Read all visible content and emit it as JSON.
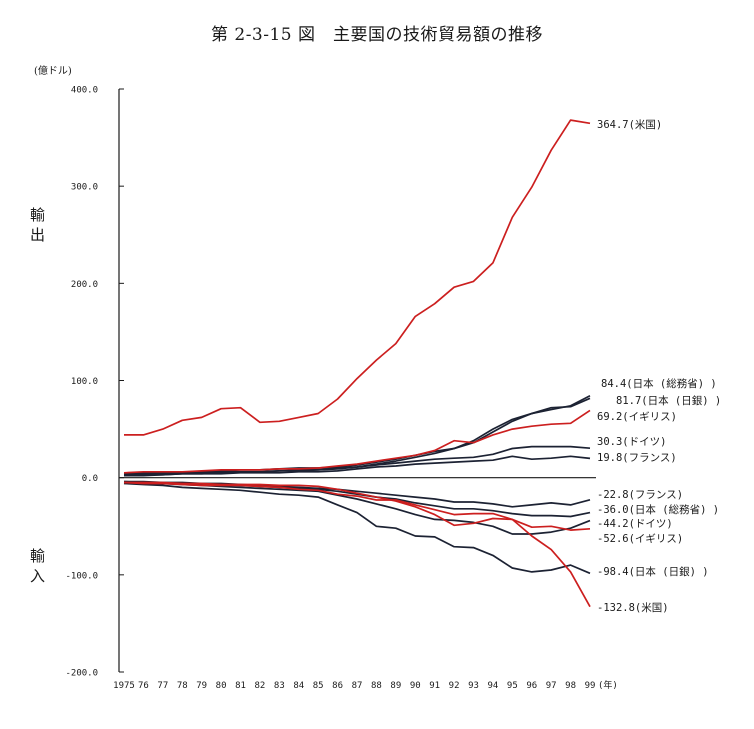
{
  "chart_data": {
    "type": "line",
    "title": "第 2-3-15 図　主要国の技術貿易額の推移",
    "unit_label": "(億ドル)",
    "export_label": "輸\n出",
    "import_label": "輸\n入",
    "year_suffix": "(年)",
    "x": [
      "1975",
      "76",
      "77",
      "78",
      "79",
      "80",
      "81",
      "82",
      "83",
      "84",
      "85",
      "86",
      "87",
      "88",
      "89",
      "90",
      "91",
      "92",
      "93",
      "94",
      "95",
      "96",
      "97",
      "98",
      "99"
    ],
    "ylim": [
      -200,
      400
    ],
    "yticks": [
      400,
      300,
      200,
      100,
      0,
      -100,
      -200
    ],
    "ytick_labels": [
      "400.0",
      "300.0",
      "200.0",
      "100.0",
      "0.0",
      "-100.0",
      "-200.0"
    ],
    "grid": false,
    "colors": {
      "red": "#cc1f1f",
      "dark": "#1c2233"
    },
    "series": [
      {
        "name": "364.7(米国)",
        "color": "red",
        "values": [
          44,
          44,
          50,
          59,
          62,
          71,
          72,
          57,
          58,
          62,
          66,
          81,
          102,
          121,
          138,
          166,
          179,
          196,
          202,
          221,
          268,
          299,
          337,
          368,
          364.7
        ]
      },
      {
        "name": "84.4(日本 (総務省) )",
        "color": "dark",
        "values": [
          4,
          5,
          5,
          6,
          6,
          7,
          8,
          8,
          9,
          10,
          10,
          11,
          13,
          16,
          19,
          23,
          27,
          30,
          36,
          47,
          58,
          66,
          70,
          74,
          84.4
        ]
      },
      {
        "name": "81.7(日本 (日銀) )",
        "color": "dark",
        "values": [
          2,
          2,
          3,
          4,
          4,
          5,
          6,
          6,
          7,
          7,
          8,
          9,
          11,
          14,
          17,
          21,
          25,
          30,
          38,
          50,
          60,
          66,
          72,
          73,
          81.7
        ]
      },
      {
        "name": "69.2(イギリス)",
        "color": "red",
        "values": [
          5,
          6,
          6,
          6,
          7,
          8,
          8,
          8,
          9,
          9,
          10,
          12,
          14,
          17,
          20,
          23,
          28,
          38,
          36,
          44,
          50,
          53,
          55,
          56,
          69.2
        ]
      },
      {
        "name": "30.3(ドイツ)",
        "color": "dark",
        "values": [
          3,
          4,
          4,
          5,
          5,
          6,
          6,
          6,
          7,
          8,
          8,
          10,
          11,
          13,
          15,
          17,
          19,
          20,
          21,
          24,
          30,
          32,
          32,
          32,
          30.3
        ]
      },
      {
        "name": "19.8(フランス)",
        "color": "dark",
        "values": [
          2,
          3,
          3,
          4,
          4,
          4,
          5,
          5,
          5,
          6,
          6,
          7,
          9,
          11,
          12,
          14,
          15,
          16,
          17,
          18,
          22,
          19,
          20,
          22,
          19.8
        ]
      },
      {
        "name": "-22.8(フランス)",
        "color": "dark",
        "values": [
          -4,
          -4,
          -5,
          -5,
          -6,
          -6,
          -7,
          -8,
          -9,
          -10,
          -11,
          -12,
          -14,
          -16,
          -18,
          -20,
          -22,
          -25,
          -25,
          -27,
          -30,
          -28,
          -26,
          -28,
          -22.8
        ]
      },
      {
        "name": "-36.0(日本 (総務省) )",
        "color": "dark",
        "values": [
          -4,
          -5,
          -6,
          -6,
          -7,
          -7,
          -8,
          -9,
          -10,
          -11,
          -12,
          -14,
          -17,
          -20,
          -22,
          -26,
          -29,
          -32,
          -32,
          -34,
          -37,
          -39,
          -39,
          -40,
          -36.0
        ]
      },
      {
        "name": "-44.2(ドイツ)",
        "color": "dark",
        "values": [
          -5,
          -6,
          -6,
          -7,
          -8,
          -9,
          -10,
          -11,
          -12,
          -13,
          -14,
          -18,
          -22,
          -27,
          -32,
          -38,
          -43,
          -44,
          -46,
          -50,
          -58,
          -58,
          -56,
          -52,
          -44.2
        ]
      },
      {
        "name": "-52.6(イギリス)",
        "color": "red",
        "values": [
          -5,
          -5,
          -5,
          -6,
          -6,
          -7,
          -7,
          -7,
          -8,
          -8,
          -9,
          -12,
          -16,
          -20,
          -24,
          -30,
          -38,
          -49,
          -47,
          -42,
          -43,
          -51,
          -50,
          -54,
          -52.6
        ]
      },
      {
        "name": "-98.4(日本 (日銀) )",
        "color": "dark",
        "values": [
          -6,
          -7,
          -8,
          -10,
          -11,
          -12,
          -13,
          -15,
          -17,
          -18,
          -20,
          -28,
          -36,
          -50,
          -52,
          -60,
          -61,
          -71,
          -72,
          -80,
          -93,
          -97,
          -95,
          -90,
          -98.4
        ]
      },
      {
        "name": "-132.8(米国)",
        "color": "red",
        "values": [
          -5,
          -6,
          -6,
          -7,
          -8,
          -8,
          -8,
          -9,
          -10,
          -12,
          -13,
          -17,
          -19,
          -23,
          -23,
          -28,
          -33,
          -38,
          -37,
          -37,
          -43,
          -60,
          -74,
          -97,
          -132.8
        ]
      }
    ]
  }
}
